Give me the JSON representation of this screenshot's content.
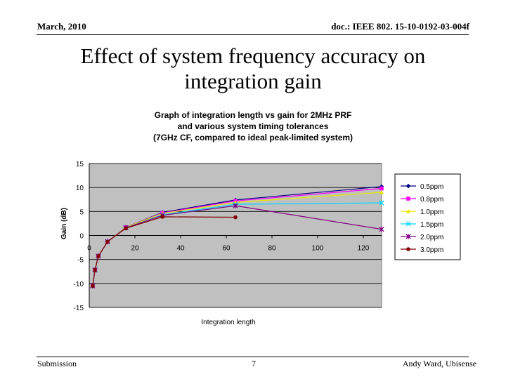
{
  "header": {
    "date": "March, 2010",
    "doc_id": "doc.: IEEE 802. 15-10-0192-03-004f"
  },
  "slide": {
    "title_line1": "Effect of system frequency accuracy on",
    "title_line2": "integration gain"
  },
  "footer": {
    "left": "Submission",
    "page": "7",
    "right": "Andy Ward, Ubisense"
  },
  "colors": {
    "plot_bg": "#c0c0c0",
    "page_bg": "#ffffff"
  },
  "chart_data": {
    "type": "line",
    "title_lines": [
      "Graph of integration length vs gain for 2MHz PRF",
      "and various system timing tolerances",
      "(7GHz CF, compared to ideal peak-limited system)"
    ],
    "xlabel": "Integration length",
    "ylabel": "Gain (dB)",
    "xlim": [
      0,
      128
    ],
    "ylim": [
      -15,
      15
    ],
    "xticks": [
      0,
      20,
      40,
      60,
      80,
      100,
      120
    ],
    "yticks": [
      15,
      10,
      5,
      0,
      -5,
      -10,
      -15
    ],
    "grid": {
      "horizontal": true,
      "vertical": false
    },
    "legend_position": "right",
    "series": [
      {
        "name": "0.5ppm",
        "color": "#000080",
        "marker": "diamond",
        "points": [
          [
            1.5,
            -10.5
          ],
          [
            2.5,
            -7.2
          ],
          [
            4,
            -4.3
          ],
          [
            8,
            -1.3
          ],
          [
            16,
            1.7
          ],
          [
            32,
            4.8
          ],
          [
            64,
            7.4
          ],
          [
            128,
            10.2
          ]
        ]
      },
      {
        "name": "0.8ppm",
        "color": "#ff00ff",
        "marker": "square",
        "points": [
          [
            1.5,
            -10.5
          ],
          [
            2.5,
            -7.2
          ],
          [
            4,
            -4.3
          ],
          [
            8,
            -1.3
          ],
          [
            16,
            1.7
          ],
          [
            32,
            4.7
          ],
          [
            64,
            7.2
          ],
          [
            128,
            9.8
          ]
        ]
      },
      {
        "name": "1.0ppm",
        "color": "#e8e800",
        "marker": "triangle",
        "points": [
          [
            1.5,
            -10.5
          ],
          [
            2.5,
            -7.2
          ],
          [
            4,
            -4.3
          ],
          [
            8,
            -1.3
          ],
          [
            16,
            1.7
          ],
          [
            32,
            4.6
          ],
          [
            64,
            6.9
          ],
          [
            128,
            9.0
          ]
        ]
      },
      {
        "name": "1.5ppm",
        "color": "#00d8ff",
        "marker": "x",
        "points": [
          [
            1.5,
            -10.5
          ],
          [
            2.5,
            -7.2
          ],
          [
            4,
            -4.3
          ],
          [
            8,
            -1.3
          ],
          [
            16,
            1.6
          ],
          [
            32,
            4.3
          ],
          [
            64,
            6.5
          ],
          [
            128,
            6.8
          ]
        ]
      },
      {
        "name": "2.0ppm",
        "color": "#800080",
        "marker": "asterisk",
        "points": [
          [
            1.5,
            -10.5
          ],
          [
            2.5,
            -7.2
          ],
          [
            4,
            -4.3
          ],
          [
            8,
            -1.3
          ],
          [
            16,
            1.6
          ],
          [
            32,
            4.2
          ],
          [
            64,
            6.2
          ],
          [
            128,
            1.3
          ]
        ]
      },
      {
        "name": "3.0ppm",
        "color": "#800000",
        "marker": "circle",
        "points": [
          [
            1.5,
            -10.5
          ],
          [
            2.5,
            -7.2
          ],
          [
            4,
            -4.3
          ],
          [
            8,
            -1.3
          ],
          [
            16,
            1.5
          ],
          [
            32,
            3.9
          ],
          [
            64,
            3.8
          ]
        ]
      }
    ]
  }
}
